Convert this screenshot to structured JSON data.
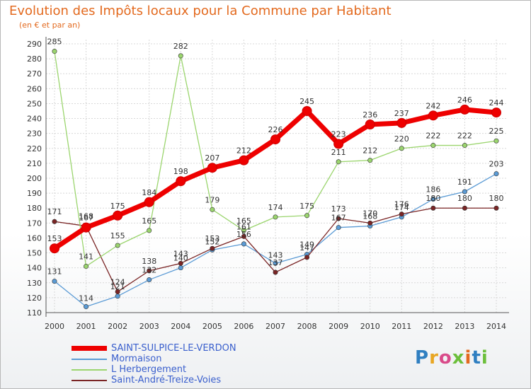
{
  "title": "Evolution des Impôts locaux pour la Commune par Habitant",
  "subtitle": "(en € et par an)",
  "logo": {
    "text": "Proxiti",
    "colors": [
      "#2f7fc1",
      "#e8a623",
      "#d94b8a",
      "#6cbf3b",
      "#e36a1f",
      "#2f7fc1",
      "#6cbf3b"
    ]
  },
  "chart_data": {
    "type": "line",
    "title": "Evolution des Impôts locaux pour la Commune par Habitant",
    "subtitle": "(en € et par an)",
    "x": [
      "2000",
      "2001",
      "2002",
      "2003",
      "2004",
      "2005",
      "2006",
      "2007",
      "2008",
      "2009",
      "2010",
      "2011",
      "2012",
      "2013",
      "2014"
    ],
    "ylim": [
      110,
      290
    ],
    "yticks": [
      110,
      120,
      130,
      140,
      150,
      160,
      170,
      180,
      190,
      200,
      210,
      220,
      230,
      240,
      250,
      260,
      270,
      280,
      290
    ],
    "grid": true,
    "legend": "bottom-left",
    "series": [
      {
        "name": "SAINT-SULPICE-LE-VERDON",
        "color": "#ee0000",
        "values": [
          153,
          167,
          175,
          184,
          198,
          207,
          212,
          226,
          245,
          223,
          236,
          237,
          242,
          246,
          244
        ]
      },
      {
        "name": "Mormaison",
        "color": "#5b9bd5",
        "values": [
          131,
          114,
          121,
          132,
          140,
          152,
          156,
          143,
          149,
          167,
          168,
          174,
          186,
          191,
          203
        ]
      },
      {
        "name": "L'Herbergement",
        "color": "#9bd56e",
        "values": [
          285,
          141,
          155,
          165,
          282,
          179,
          165,
          174,
          175,
          211,
          212,
          220,
          222,
          222,
          225
        ]
      },
      {
        "name": "Saint-André-Treize-Voies",
        "color": "#7a2525",
        "values": [
          171,
          168,
          124,
          138,
          143,
          153,
          161,
          137,
          147,
          173,
          170,
          176,
          180,
          180,
          180
        ]
      }
    ]
  },
  "legend_labels": [
    "SAINT-SULPICE-LE-VERDON",
    "Mormaison",
    "L  Herbergement",
    "Saint-André-Treize-Voies"
  ]
}
